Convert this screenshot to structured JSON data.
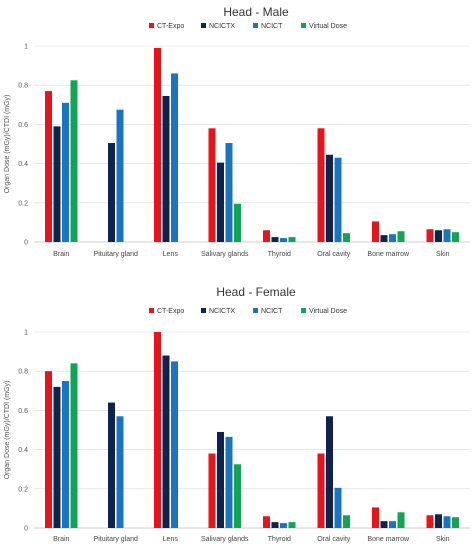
{
  "figure": {
    "ylabel": "Organ Dose (mGy)/CTDI (mGy)"
  },
  "colors": {
    "CT-Expo": "#e8141b",
    "NCICTX": "#10234f",
    "NCICT": "#1b74c0",
    "Virtual Dose": "#11a553"
  },
  "chart_data": [
    {
      "type": "bar",
      "title": "Head - Male",
      "ylabel": "Organ Dose (mGy)/CTDI (mGy)",
      "ylim": [
        0,
        1
      ],
      "yticks": [
        "0",
        "0.2",
        "0.4",
        "0.6",
        "0.8",
        "1"
      ],
      "grid": true,
      "legend_position": "top",
      "categories": [
        "Brain",
        "Pituitary gland",
        "Lens",
        "Salivary glands",
        "Thyroid",
        "Oral cavity",
        "Bone marrow",
        "Skin"
      ],
      "series": [
        {
          "name": "CT-Expo",
          "values": [
            0.77,
            null,
            0.99,
            0.58,
            0.06,
            0.58,
            0.105,
            0.065
          ]
        },
        {
          "name": "NCICTX",
          "values": [
            0.59,
            0.505,
            0.745,
            0.405,
            0.025,
            0.445,
            0.035,
            0.06
          ]
        },
        {
          "name": "NCICT",
          "values": [
            0.71,
            0.675,
            0.86,
            0.505,
            0.02,
            0.43,
            0.04,
            0.065
          ]
        },
        {
          "name": "Virtual Dose",
          "values": [
            0.825,
            null,
            null,
            0.195,
            0.025,
            0.045,
            0.055,
            0.05
          ]
        }
      ]
    },
    {
      "type": "bar",
      "title": "Head - Female",
      "ylabel": "Organ Dose (mGy)/CTDI (mGy)",
      "ylim": [
        0,
        1
      ],
      "yticks": [
        "0",
        "0.2",
        "0.4",
        "0.6",
        "0.8",
        "1"
      ],
      "grid": true,
      "legend_position": "top",
      "categories": [
        "Brain",
        "Pituitary gland",
        "Lens",
        "Salivary glands",
        "Thyroid",
        "Oral cavity",
        "Bone marrow",
        "Skin"
      ],
      "series": [
        {
          "name": "CT-Expo",
          "values": [
            0.8,
            null,
            1.0,
            0.38,
            0.06,
            0.38,
            0.105,
            0.065
          ]
        },
        {
          "name": "NCICTX",
          "values": [
            0.72,
            0.64,
            0.88,
            0.49,
            0.03,
            0.57,
            0.035,
            0.07
          ]
        },
        {
          "name": "NCICT",
          "values": [
            0.75,
            0.57,
            0.85,
            0.465,
            0.025,
            0.205,
            0.035,
            0.06
          ]
        },
        {
          "name": "Virtual Dose",
          "values": [
            0.84,
            null,
            null,
            0.325,
            0.03,
            0.065,
            0.08,
            0.055
          ]
        }
      ]
    }
  ]
}
